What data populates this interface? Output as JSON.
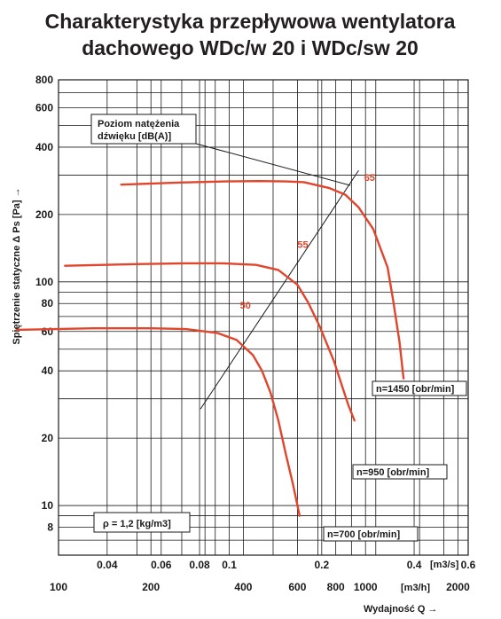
{
  "title_lines": [
    "Charakterystyka przepływowa wentylatora",
    "dachowego WDc/w 20 i WDc/sw 20"
  ],
  "colors": {
    "curve": "#e1452b",
    "grid": "#1a1a1a",
    "text": "#231f20"
  },
  "chart_data": {
    "type": "line",
    "x_scale": "log",
    "y_scale": "log",
    "ylabel": "Spiętrzenie statyczne Δ Ps [Pa] →",
    "xlabel": "Wydajność Q →",
    "x_unit_top": "[m3/s]",
    "x_unit_bottom": "[m3/h]",
    "xlim_m3h": [
      100,
      2160
    ],
    "ylim": [
      6,
      800
    ],
    "y_ticks": [
      "8",
      "10",
      "20",
      "40",
      "60",
      "80",
      "100",
      "200",
      "400",
      "600",
      "800"
    ],
    "y_tick_values": [
      8,
      10,
      20,
      40,
      60,
      80,
      100,
      200,
      400,
      600,
      800
    ],
    "x_ticks_top": [
      "0.04",
      "0.06",
      "0.08",
      "0.1",
      "0.2",
      "0.4",
      "0.6"
    ],
    "x_ticks_top_values": [
      0.04,
      0.06,
      0.08,
      0.1,
      0.2,
      0.4,
      0.6
    ],
    "x_ticks_bottom": [
      "100",
      "200",
      "400",
      "600",
      "800",
      "1000",
      "2000"
    ],
    "x_ticks_bottom_values": [
      100,
      200,
      400,
      600,
      800,
      1000,
      2000
    ],
    "grid_minor_y": [
      7,
      9,
      30,
      50,
      70,
      90,
      300,
      500,
      700
    ],
    "grid_minor_x_m3h": [
      300,
      500,
      700,
      900,
      1500
    ],
    "grid_top_m3s": [
      0.05,
      0.07,
      0.09,
      0.3,
      0.5
    ],
    "series": [
      {
        "name": "n=1450 [obr/min]",
        "x": [
          160,
          250,
          350,
          450,
          550,
          630,
          760,
          860,
          950,
          1060,
          1180,
          1230,
          1290,
          1330
        ],
        "y": [
          272,
          278,
          281,
          282,
          281,
          279,
          263,
          245,
          215,
          172,
          116,
          83,
          54,
          37
        ]
      },
      {
        "name": "n=950 [obr/min]",
        "x": [
          105,
          180,
          260,
          340,
          440,
          520,
          600,
          650,
          710,
          790,
          840,
          880,
          920
        ],
        "y": [
          118,
          120,
          121,
          121,
          119,
          113,
          97,
          81,
          63,
          44,
          34,
          28,
          24
        ]
      },
      {
        "name": "n=700 [obr/min]",
        "x": [
          73,
          130,
          200,
          260,
          330,
          380,
          430,
          460,
          490,
          520,
          550,
          580,
          610
        ],
        "y": [
          61,
          62,
          62,
          61.5,
          59,
          55,
          47,
          40,
          32,
          24,
          17,
          12.5,
          9
        ]
      }
    ],
    "noise_line": {
      "label": "Poziom natężenia dźwięku [dB(A)]",
      "x": [
        290,
        950
      ],
      "y": [
        27,
        315
      ]
    },
    "noise_labels": [
      {
        "text": "65",
        "x": 990,
        "y": 282
      },
      {
        "text": "55",
        "x": 600,
        "y": 142
      },
      {
        "text": "50",
        "x": 390,
        "y": 76
      }
    ],
    "density": "ρ = 1,2 [kg/m3]"
  }
}
